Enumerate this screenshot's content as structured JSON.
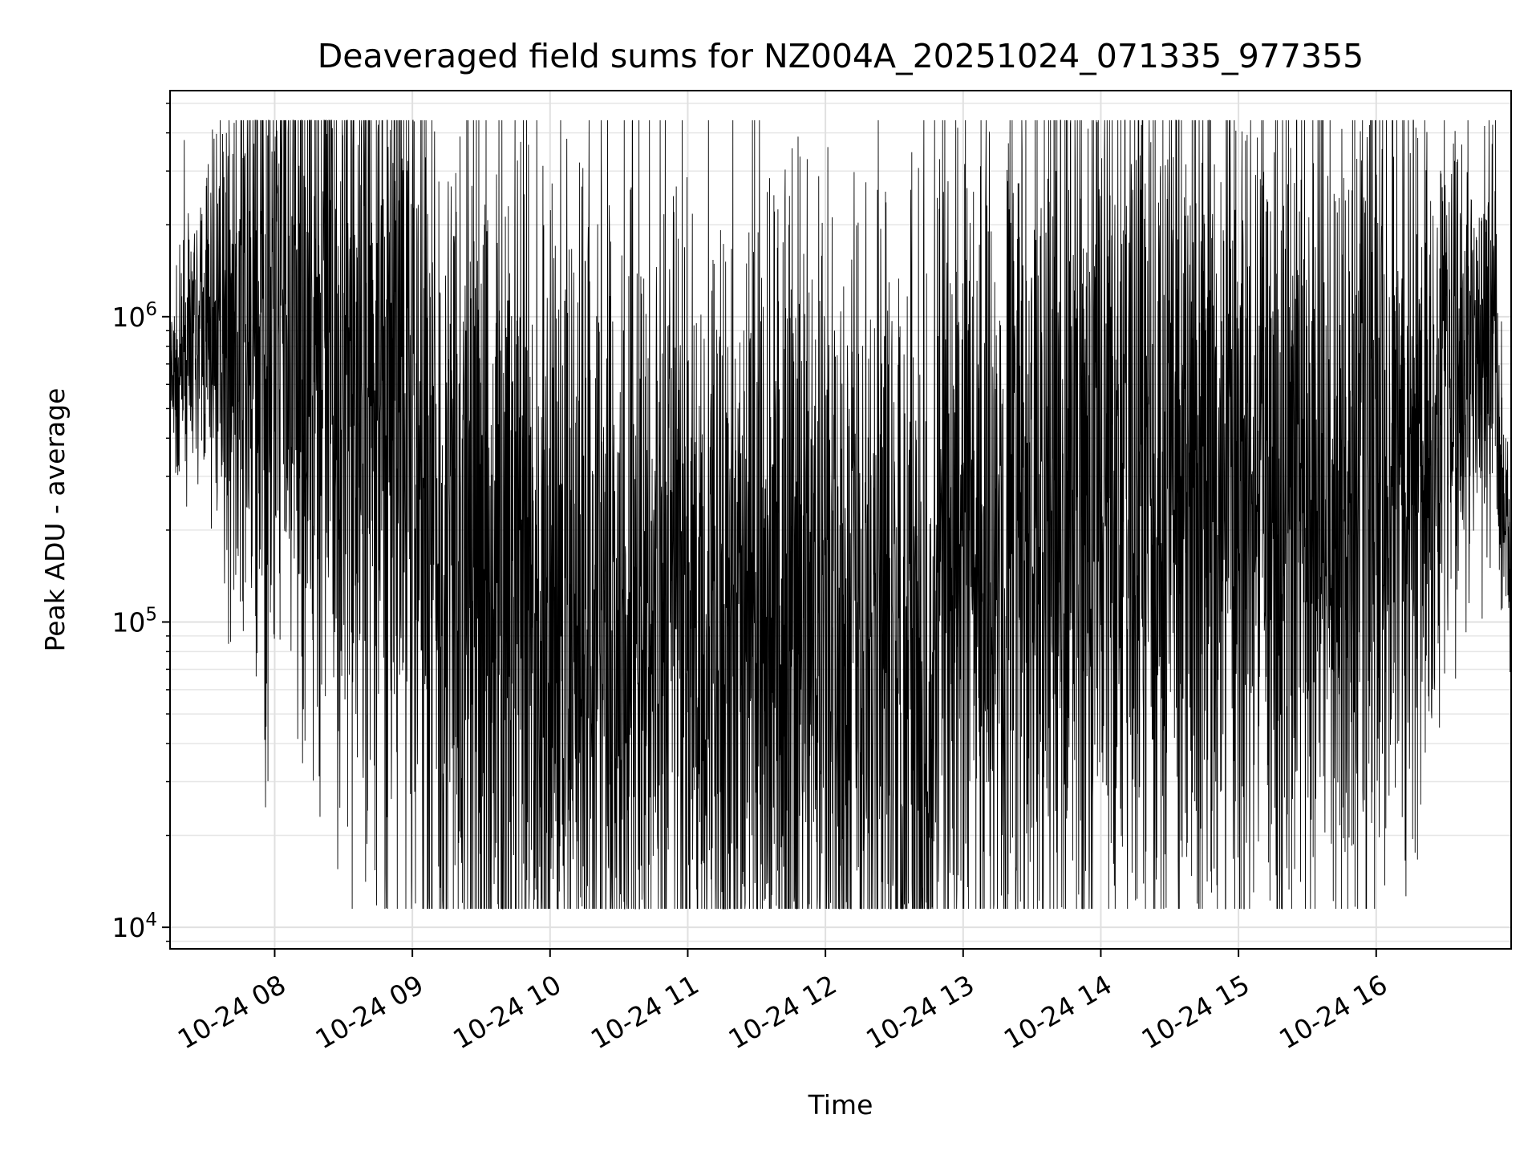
{
  "chart_data": {
    "type": "line",
    "title": "Deaveraged field sums for NZ004A_20251024_071335_977355",
    "xlabel": "Time",
    "ylabel": "Peak ADU - average",
    "yscale": "log",
    "ylim": [
      8500,
      5500000
    ],
    "xlim_hours": [
      7.24,
      16.98
    ],
    "x_ticks": [
      {
        "value": 8,
        "label": "10-24 08"
      },
      {
        "value": 9,
        "label": "10-24 09"
      },
      {
        "value": 10,
        "label": "10-24 10"
      },
      {
        "value": 11,
        "label": "10-24 11"
      },
      {
        "value": 12,
        "label": "10-24 12"
      },
      {
        "value": 13,
        "label": "10-24 13"
      },
      {
        "value": 14,
        "label": "10-24 14"
      },
      {
        "value": 15,
        "label": "10-24 15"
      },
      {
        "value": 16,
        "label": "10-24 16"
      }
    ],
    "y_ticks": [
      {
        "value": 10000,
        "base": "10",
        "exp": "4"
      },
      {
        "value": 100000,
        "base": "10",
        "exp": "5"
      },
      {
        "value": 1000000,
        "base": "10",
        "exp": "6"
      }
    ],
    "grid": true,
    "series": [
      {
        "name": "Peak ADU - average",
        "color": "#000000",
        "envelope": {
          "x": [
            7.24,
            7.5,
            7.9,
            8.3,
            8.7,
            9.0,
            9.25,
            9.6,
            10.0,
            10.5,
            11.0,
            11.5,
            12.0,
            12.5,
            12.8,
            13.2,
            13.6,
            14.0,
            14.5,
            15.0,
            15.5,
            16.0,
            16.3,
            16.6,
            16.85,
            16.98
          ],
          "center": [
            550000,
            900000,
            850000,
            700000,
            500000,
            400000,
            150000,
            130000,
            110000,
            100000,
            95000,
            90000,
            90000,
            85000,
            120000,
            170000,
            220000,
            280000,
            260000,
            240000,
            250000,
            270000,
            350000,
            650000,
            900000,
            130000
          ],
          "spread_decades": [
            0.15,
            0.25,
            0.6,
            0.7,
            0.8,
            0.8,
            0.85,
            0.85,
            0.8,
            0.8,
            0.8,
            0.8,
            0.8,
            0.8,
            0.8,
            0.8,
            0.8,
            0.8,
            0.8,
            0.8,
            0.8,
            0.8,
            0.7,
            0.4,
            0.35,
            0.15
          ]
        },
        "approx_points": 5000,
        "min_value": 11500,
        "max_value": 4400000
      }
    ]
  }
}
